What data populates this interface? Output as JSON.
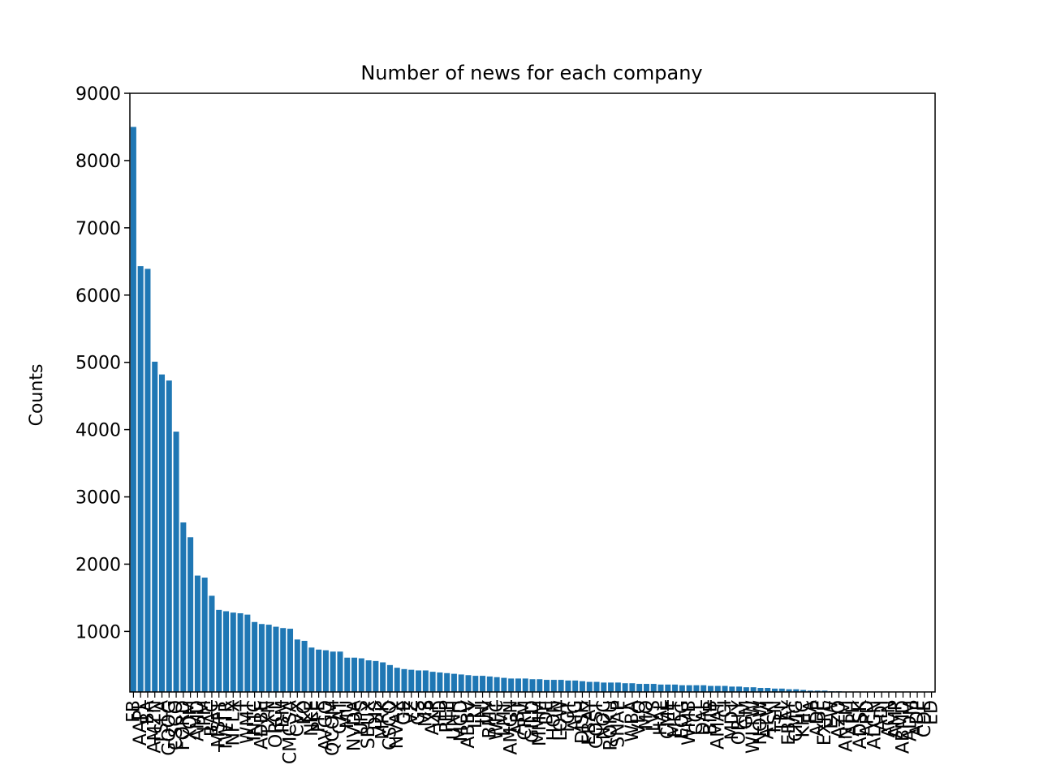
{
  "chart_data": {
    "type": "bar",
    "title": "Number of news for each company",
    "xlabel": "",
    "ylabel": "Counts",
    "ylim": [
      100,
      9000
    ],
    "yticks": [
      1000,
      2000,
      3000,
      4000,
      5000,
      6000,
      7000,
      8000,
      9000
    ],
    "grid": false,
    "bar_color": "#1f77b4",
    "categories": [
      "FB",
      "AAPL",
      "BA",
      "AMZN",
      "TSLA",
      "GOOG",
      "CSCO",
      "FORD",
      "XOM",
      "AMD",
      "JPM",
      "BAC",
      "MSFT",
      "TWTR",
      "NFLX",
      "T",
      "WMT",
      "INTC",
      "ADBE",
      "TXN",
      "ORCL",
      "IBM",
      "CMCSA",
      "CVX",
      "KO",
      "NKE",
      "PFE",
      "AVGO",
      "QCOM",
      "CAT",
      "MU",
      "NVDA",
      "UPS",
      "SBUX",
      "DIS",
      "MRK",
      "CSCO",
      "NVAX",
      "GE",
      "VZ",
      "GS",
      "MS",
      "AXP",
      "HD",
      "PEP",
      "UNH",
      "MCD",
      "ABBV",
      "LLY",
      "JNJ",
      "BMY",
      "WFC",
      "LMT",
      "AMGN",
      "ABT",
      "CRM",
      "GILD",
      "MMM",
      "DE",
      "HON",
      "LOW",
      "TGT",
      "AIG",
      "DISH",
      "EBAY",
      "COST",
      "NOC",
      "ROKU",
      "SNAP",
      "F",
      "WBA",
      "VLO",
      "MO",
      "LVS",
      "HAL",
      "CME",
      "MET",
      "EOG",
      "WMB",
      "CCL",
      "DAL",
      "BIIB",
      "AMAT",
      "CI",
      "MDT",
      "ORLY",
      "GM",
      "WLTW",
      "NOW",
      "ATVI",
      "TSN",
      "TEL",
      "EBAY",
      "CMG",
      "KHC",
      "EA",
      "ADP",
      "EXPE",
      "EW",
      "AZO",
      "ANTM",
      "APH",
      "ADSK",
      "APD",
      "ALGN",
      "ADI",
      "ACN",
      "AMP",
      "ABMD",
      "ADM",
      "ADP",
      "CDE",
      "ED"
    ],
    "values": [
      8500,
      6430,
      6390,
      5010,
      4820,
      4730,
      3970,
      2620,
      2400,
      1830,
      1800,
      1530,
      1320,
      1300,
      1280,
      1270,
      1250,
      1140,
      1110,
      1100,
      1070,
      1050,
      1040,
      880,
      860,
      760,
      730,
      720,
      700,
      700,
      610,
      610,
      600,
      570,
      560,
      540,
      500,
      460,
      440,
      430,
      420,
      420,
      400,
      390,
      380,
      370,
      360,
      350,
      340,
      340,
      330,
      320,
      310,
      300,
      300,
      300,
      290,
      290,
      280,
      280,
      280,
      270,
      270,
      260,
      250,
      250,
      240,
      240,
      240,
      230,
      230,
      220,
      220,
      220,
      210,
      210,
      210,
      200,
      200,
      200,
      200,
      190,
      190,
      190,
      180,
      180,
      170,
      170,
      160,
      160,
      150,
      150,
      140,
      140,
      130,
      120,
      120,
      120,
      110,
      110,
      105,
      105,
      105,
      105,
      105,
      105,
      105,
      105,
      105,
      100,
      100,
      100,
      100
    ]
  }
}
